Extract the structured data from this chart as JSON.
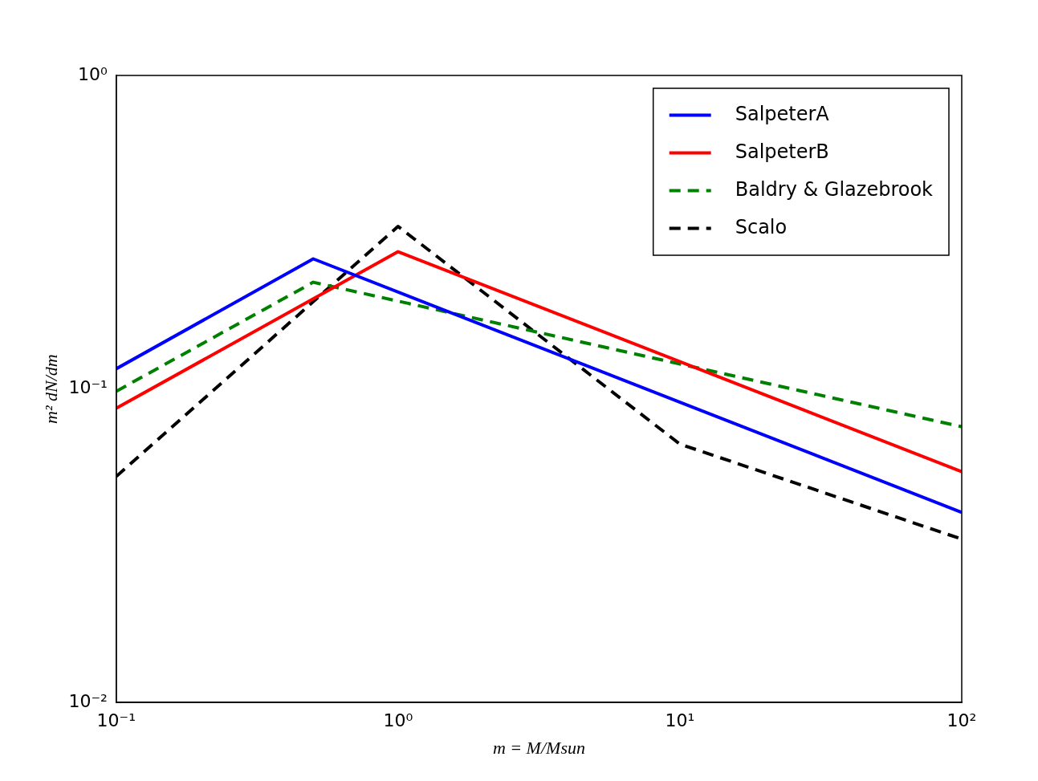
{
  "chart_data": {
    "type": "line",
    "xlabel": "m = M/Msun",
    "ylabel": "m² dN/dm",
    "log": "xy",
    "xlim": [
      0.1,
      100
    ],
    "ylim": [
      0.01,
      1
    ],
    "xticks": [
      {
        "value": 0.1,
        "label": "10⁻¹"
      },
      {
        "value": 1,
        "label": "10⁰"
      },
      {
        "value": 10,
        "label": "10¹"
      },
      {
        "value": 100,
        "label": "10²"
      }
    ],
    "yticks": [
      {
        "value": 0.01,
        "label": "10⁻²"
      },
      {
        "value": 0.1,
        "label": "10⁻¹"
      },
      {
        "value": 1,
        "label": "10⁰"
      }
    ],
    "grid": false,
    "legend": "top right",
    "marker": "none",
    "series": [
      {
        "name": "SalpeterA",
        "color": "#0000ff",
        "line_style": "solid",
        "x": [
          0.1,
          0.5,
          100
        ],
        "values": [
          0.116,
          0.26,
          0.0404
        ]
      },
      {
        "name": "SalpeterB",
        "color": "#ff0000",
        "line_style": "solid",
        "x": [
          0.1,
          1,
          100
        ],
        "values": [
          0.0868,
          0.274,
          0.0545
        ]
      },
      {
        "name": "Baldry & Glazebrook",
        "color": "#008000",
        "line_style": "dashed",
        "x": [
          0.1,
          0.5,
          100
        ],
        "values": [
          0.0983,
          0.219,
          0.0758
        ]
      },
      {
        "name": "Scalo",
        "color": "#000000",
        "line_style": "dashed",
        "x": [
          0.1,
          1,
          10,
          100
        ],
        "values": [
          0.0526,
          0.33,
          0.0667,
          0.0332
        ]
      }
    ]
  }
}
